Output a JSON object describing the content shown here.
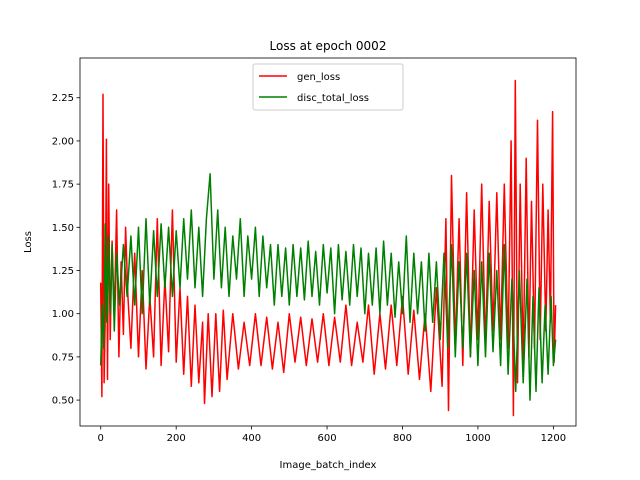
{
  "chart_data": {
    "type": "line",
    "title": "Loss at epoch 0002",
    "xlabel": "Image_batch_index",
    "ylabel": "Loss",
    "xlim": [
      -55,
      1260
    ],
    "ylim": [
      0.35,
      2.48
    ],
    "xticks": [
      0,
      200,
      400,
      600,
      800,
      1000,
      1200
    ],
    "xtick_labels": [
      "0",
      "200",
      "400",
      "600",
      "800",
      "1000",
      "1200"
    ],
    "yticks": [
      0.5,
      0.75,
      1.0,
      1.25,
      1.5,
      1.75,
      2.0,
      2.25
    ],
    "ytick_labels": [
      "0.50",
      "0.75",
      "1.00",
      "1.25",
      "1.50",
      "1.75",
      "2.00",
      "2.25"
    ],
    "grid": false,
    "legend_position": "upper center",
    "series": [
      {
        "name": "gen_loss",
        "color": "#ff0000",
        "points": [
          [
            0,
            1.18
          ],
          [
            3,
            0.52
          ],
          [
            6,
            2.27
          ],
          [
            9,
            0.6
          ],
          [
            12,
            1.0
          ],
          [
            15,
            2.01
          ],
          [
            18,
            0.62
          ],
          [
            21,
            1.75
          ],
          [
            25,
            0.85
          ],
          [
            30,
            1.42
          ],
          [
            36,
            0.98
          ],
          [
            42,
            1.6
          ],
          [
            48,
            0.75
          ],
          [
            54,
            1.3
          ],
          [
            60,
            0.88
          ],
          [
            66,
            1.5
          ],
          [
            72,
            1.1
          ],
          [
            80,
            0.8
          ],
          [
            90,
            1.35
          ],
          [
            100,
            0.75
          ],
          [
            110,
            1.25
          ],
          [
            120,
            0.68
          ],
          [
            130,
            1.1
          ],
          [
            140,
            0.75
          ],
          [
            150,
            1.55
          ],
          [
            160,
            0.7
          ],
          [
            170,
            1.2
          ],
          [
            180,
            0.78
          ],
          [
            190,
            1.6
          ],
          [
            200,
            0.72
          ],
          [
            210,
            1.15
          ],
          [
            220,
            0.65
          ],
          [
            230,
            1.1
          ],
          [
            240,
            0.58
          ],
          [
            250,
            1.05
          ],
          [
            260,
            0.6
          ],
          [
            270,
            0.95
          ],
          [
            275,
            0.48
          ],
          [
            285,
            1.0
          ],
          [
            295,
            0.52
          ],
          [
            305,
            1.0
          ],
          [
            315,
            0.55
          ],
          [
            325,
            1.02
          ],
          [
            335,
            0.62
          ],
          [
            350,
            1.0
          ],
          [
            365,
            0.68
          ],
          [
            380,
            0.95
          ],
          [
            395,
            0.7
          ],
          [
            410,
            1.0
          ],
          [
            425,
            0.7
          ],
          [
            440,
            0.98
          ],
          [
            455,
            0.68
          ],
          [
            470,
            0.95
          ],
          [
            485,
            0.66
          ],
          [
            500,
            1.0
          ],
          [
            515,
            0.72
          ],
          [
            530,
            0.98
          ],
          [
            545,
            0.7
          ],
          [
            560,
            0.97
          ],
          [
            575,
            0.72
          ],
          [
            590,
            1.0
          ],
          [
            605,
            0.7
          ],
          [
            620,
            0.98
          ],
          [
            635,
            0.72
          ],
          [
            650,
            1.05
          ],
          [
            665,
            0.7
          ],
          [
            680,
            0.95
          ],
          [
            695,
            0.72
          ],
          [
            710,
            1.05
          ],
          [
            725,
            0.65
          ],
          [
            740,
            1.0
          ],
          [
            755,
            0.68
          ],
          [
            770,
            1.05
          ],
          [
            785,
            0.7
          ],
          [
            800,
            1.1
          ],
          [
            815,
            0.65
          ],
          [
            830,
            1.02
          ],
          [
            845,
            0.62
          ],
          [
            860,
            1.0
          ],
          [
            875,
            0.55
          ],
          [
            890,
            1.15
          ],
          [
            905,
            0.58
          ],
          [
            915,
            1.55
          ],
          [
            922,
            0.44
          ],
          [
            930,
            1.8
          ],
          [
            940,
            0.8
          ],
          [
            950,
            1.55
          ],
          [
            960,
            0.7
          ],
          [
            970,
            1.7
          ],
          [
            980,
            0.75
          ],
          [
            990,
            1.6
          ],
          [
            1000,
            0.85
          ],
          [
            1010,
            1.75
          ],
          [
            1020,
            0.8
          ],
          [
            1030,
            1.65
          ],
          [
            1040,
            0.9
          ],
          [
            1050,
            1.7
          ],
          [
            1060,
            0.85
          ],
          [
            1070,
            1.75
          ],
          [
            1080,
            0.8
          ],
          [
            1088,
            2.0
          ],
          [
            1094,
            0.41
          ],
          [
            1099,
            2.35
          ],
          [
            1105,
            0.6
          ],
          [
            1112,
            1.75
          ],
          [
            1120,
            0.7
          ],
          [
            1128,
            1.9
          ],
          [
            1135,
            0.75
          ],
          [
            1142,
            1.65
          ],
          [
            1150,
            0.8
          ],
          [
            1158,
            2.12
          ],
          [
            1165,
            0.85
          ],
          [
            1172,
            1.75
          ],
          [
            1180,
            0.9
          ],
          [
            1186,
            1.6
          ],
          [
            1192,
            0.95
          ],
          [
            1198,
            2.17
          ],
          [
            1202,
            0.72
          ],
          [
            1206,
            1.05
          ]
        ]
      },
      {
        "name": "disc_total_loss",
        "color": "#008000",
        "points": [
          [
            0,
            0.7
          ],
          [
            4,
            1.05
          ],
          [
            8,
            0.8
          ],
          [
            12,
            1.52
          ],
          [
            16,
            0.95
          ],
          [
            20,
            1.45
          ],
          [
            25,
            1.0
          ],
          [
            30,
            1.4
          ],
          [
            36,
            0.9
          ],
          [
            42,
            1.35
          ],
          [
            50,
            1.05
          ],
          [
            60,
            1.4
          ],
          [
            70,
            1.1
          ],
          [
            80,
            1.45
          ],
          [
            90,
            1.05
          ],
          [
            100,
            1.5
          ],
          [
            110,
            1.0
          ],
          [
            120,
            1.55
          ],
          [
            130,
            1.05
          ],
          [
            140,
            1.48
          ],
          [
            150,
            1.1
          ],
          [
            160,
            1.52
          ],
          [
            170,
            1.15
          ],
          [
            180,
            1.5
          ],
          [
            190,
            1.1
          ],
          [
            200,
            1.48
          ],
          [
            210,
            1.15
          ],
          [
            220,
            1.55
          ],
          [
            230,
            1.2
          ],
          [
            240,
            1.6
          ],
          [
            250,
            1.15
          ],
          [
            260,
            1.5
          ],
          [
            270,
            1.1
          ],
          [
            280,
            1.55
          ],
          [
            290,
            1.81
          ],
          [
            300,
            1.2
          ],
          [
            310,
            1.6
          ],
          [
            320,
            1.15
          ],
          [
            330,
            1.5
          ],
          [
            340,
            1.1
          ],
          [
            350,
            1.45
          ],
          [
            360,
            1.2
          ],
          [
            370,
            1.55
          ],
          [
            380,
            1.1
          ],
          [
            390,
            1.45
          ],
          [
            400,
            1.2
          ],
          [
            410,
            1.5
          ],
          [
            420,
            1.1
          ],
          [
            430,
            1.45
          ],
          [
            440,
            1.15
          ],
          [
            450,
            1.4
          ],
          [
            460,
            1.05
          ],
          [
            470,
            1.4
          ],
          [
            480,
            1.1
          ],
          [
            490,
            1.38
          ],
          [
            500,
            1.05
          ],
          [
            510,
            1.4
          ],
          [
            520,
            1.1
          ],
          [
            530,
            1.38
          ],
          [
            540,
            1.08
          ],
          [
            550,
            1.42
          ],
          [
            560,
            1.1
          ],
          [
            570,
            1.36
          ],
          [
            580,
            1.05
          ],
          [
            590,
            1.4
          ],
          [
            600,
            1.12
          ],
          [
            610,
            1.38
          ],
          [
            620,
            1.0
          ],
          [
            630,
            1.4
          ],
          [
            640,
            1.08
          ],
          [
            650,
            1.36
          ],
          [
            660,
            1.05
          ],
          [
            670,
            1.4
          ],
          [
            680,
            1.1
          ],
          [
            690,
            1.38
          ],
          [
            700,
            1.0
          ],
          [
            710,
            1.35
          ],
          [
            720,
            1.05
          ],
          [
            730,
            1.38
          ],
          [
            740,
            1.0
          ],
          [
            750,
            1.42
          ],
          [
            760,
            1.05
          ],
          [
            770,
            1.35
          ],
          [
            780,
            0.98
          ],
          [
            790,
            1.3
          ],
          [
            800,
            1.0
          ],
          [
            810,
            1.45
          ],
          [
            820,
            0.95
          ],
          [
            830,
            1.35
          ],
          [
            840,
            1.0
          ],
          [
            850,
            1.3
          ],
          [
            860,
            0.9
          ],
          [
            870,
            1.35
          ],
          [
            880,
            0.95
          ],
          [
            890,
            1.3
          ],
          [
            900,
            0.85
          ],
          [
            910,
            1.35
          ],
          [
            920,
            0.8
          ],
          [
            930,
            1.4
          ],
          [
            940,
            0.75
          ],
          [
            950,
            1.3
          ],
          [
            960,
            0.8
          ],
          [
            970,
            1.35
          ],
          [
            980,
            0.75
          ],
          [
            990,
            1.25
          ],
          [
            1000,
            0.7
          ],
          [
            1010,
            1.3
          ],
          [
            1020,
            0.75
          ],
          [
            1030,
            1.35
          ],
          [
            1040,
            0.78
          ],
          [
            1050,
            1.25
          ],
          [
            1060,
            0.7
          ],
          [
            1070,
            1.4
          ],
          [
            1080,
            0.65
          ],
          [
            1090,
            1.2
          ],
          [
            1100,
            0.55
          ],
          [
            1110,
            1.25
          ],
          [
            1120,
            0.6
          ],
          [
            1130,
            1.2
          ],
          [
            1138,
            0.5
          ],
          [
            1146,
            1.1
          ],
          [
            1154,
            0.55
          ],
          [
            1162,
            1.15
          ],
          [
            1170,
            0.6
          ],
          [
            1178,
            1.05
          ],
          [
            1186,
            0.65
          ],
          [
            1194,
            1.1
          ],
          [
            1200,
            0.7
          ],
          [
            1206,
            0.85
          ]
        ]
      }
    ]
  }
}
